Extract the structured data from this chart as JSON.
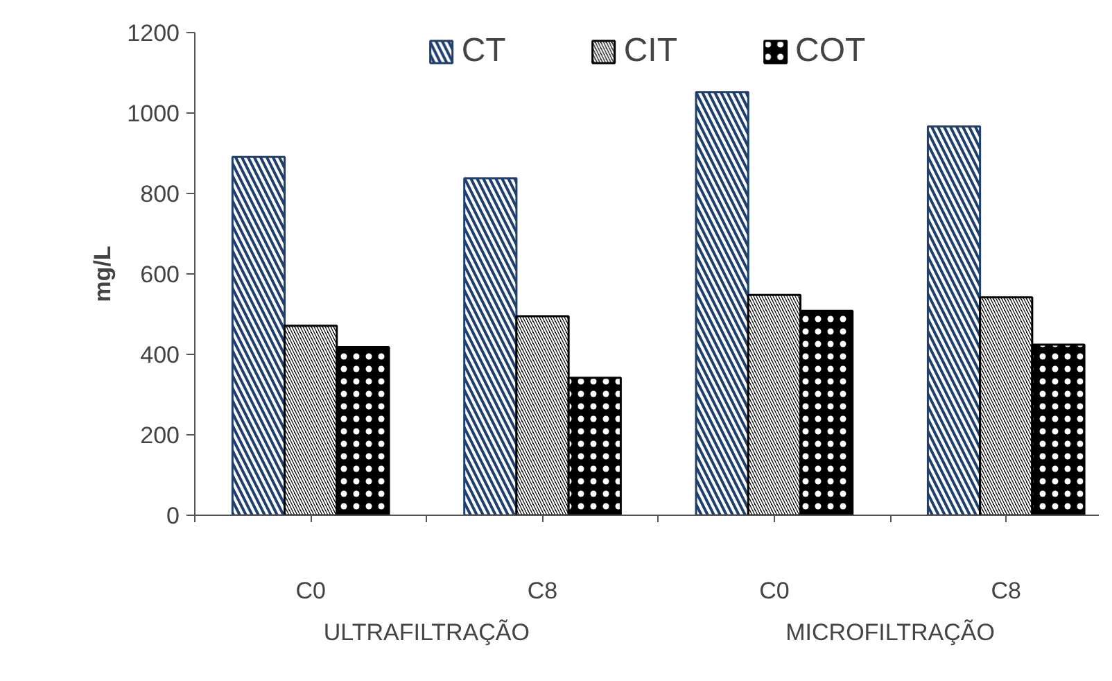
{
  "chart_data": {
    "type": "bar",
    "ylabel": "mg/L",
    "categories": [
      "C0",
      "C8",
      "C0",
      "C8"
    ],
    "series": [
      {
        "name": "CT",
        "color": "#1f3f6e",
        "values": [
          891,
          838,
          1052,
          967
        ]
      },
      {
        "name": "CIT",
        "color": "#000000",
        "values": [
          471,
          495,
          548,
          542
        ]
      },
      {
        "name": "COT",
        "color": "#000000",
        "values": [
          418,
          342,
          508,
          424
        ]
      }
    ],
    "annotations": [
      "ULTRAFILTRAÇÃO",
      "MICROFILTRAÇÃO"
    ],
    "ylim": [
      0,
      1200
    ],
    "yticks": [
      0,
      200,
      400,
      600,
      800,
      1000,
      1200
    ],
    "grid": false,
    "legend": "top"
  }
}
